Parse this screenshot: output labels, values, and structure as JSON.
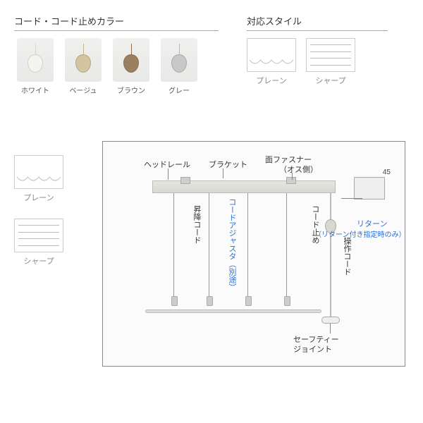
{
  "cord_section": {
    "title": "コード・コード止めカラー",
    "swatches": [
      {
        "label": "ホワイト",
        "color": "#f5f5f0",
        "cord": "#d8d8d0"
      },
      {
        "label": "ベージュ",
        "color": "#d4c4a0",
        "cord": "#c4b490"
      },
      {
        "label": "ブラウン",
        "color": "#9a8060",
        "cord": "#8a7050"
      },
      {
        "label": "グレー",
        "color": "#c8c8c8",
        "cord": "#b8b8b8"
      }
    ]
  },
  "style_section": {
    "title": "対応スタイル",
    "styles": [
      {
        "label": "プレーン",
        "kind": "plain"
      },
      {
        "label": "シャープ",
        "kind": "sharp"
      }
    ]
  },
  "left_styles": [
    {
      "label": "プレーン",
      "kind": "plain"
    },
    {
      "label": "シャープ",
      "kind": "sharp"
    }
  ],
  "diagram": {
    "labels": {
      "headrail": "ヘッドレール",
      "bracket": "ブラケット",
      "fastener": "面ファスナー",
      "fastener_sub": "（オス側）",
      "lift_cord": "昇降コード",
      "adjuster": "コードアジャスタ（別途）",
      "cord_stop": "コード止め",
      "op_cord": "操作コード",
      "safety": "セーフティージョイント",
      "return": "リターン",
      "return_sub": "（リターン付き指定時のみ）",
      "dim45": "45"
    },
    "colors": {
      "frame": "#888888",
      "leadline": "#888888",
      "text": "#333333",
      "blue_text": "#2b6fd6"
    }
  }
}
